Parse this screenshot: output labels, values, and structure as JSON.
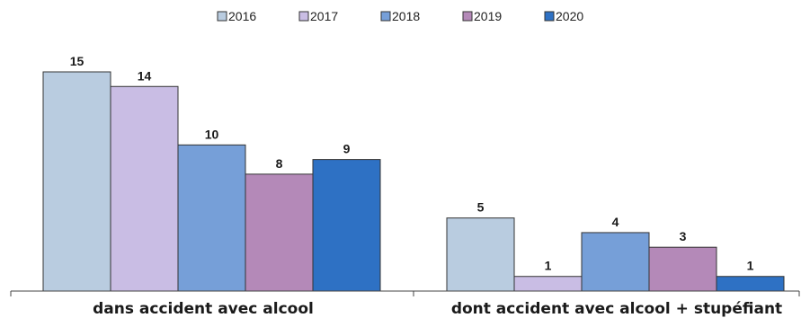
{
  "chart_data": {
    "type": "bar",
    "title": "",
    "xlabel": "",
    "ylabel": "",
    "categories": [
      "dans accident avec alcool",
      "dont accident avec alcool + stupéfiant"
    ],
    "series": [
      {
        "name": "2016",
        "color": "#b9cce0",
        "values": [
          15,
          5
        ]
      },
      {
        "name": "2017",
        "color": "#c9bde4",
        "values": [
          14,
          1
        ]
      },
      {
        "name": "2018",
        "color": "#769fd8",
        "values": [
          10,
          4
        ]
      },
      {
        "name": "2019",
        "color": "#b489b8",
        "values": [
          8,
          3
        ]
      },
      {
        "name": "2020",
        "color": "#2e71c4",
        "values": [
          9,
          1
        ]
      }
    ],
    "ylim": [
      0,
      15
    ],
    "grid": false,
    "legend": "top-center",
    "data_labels": true
  }
}
